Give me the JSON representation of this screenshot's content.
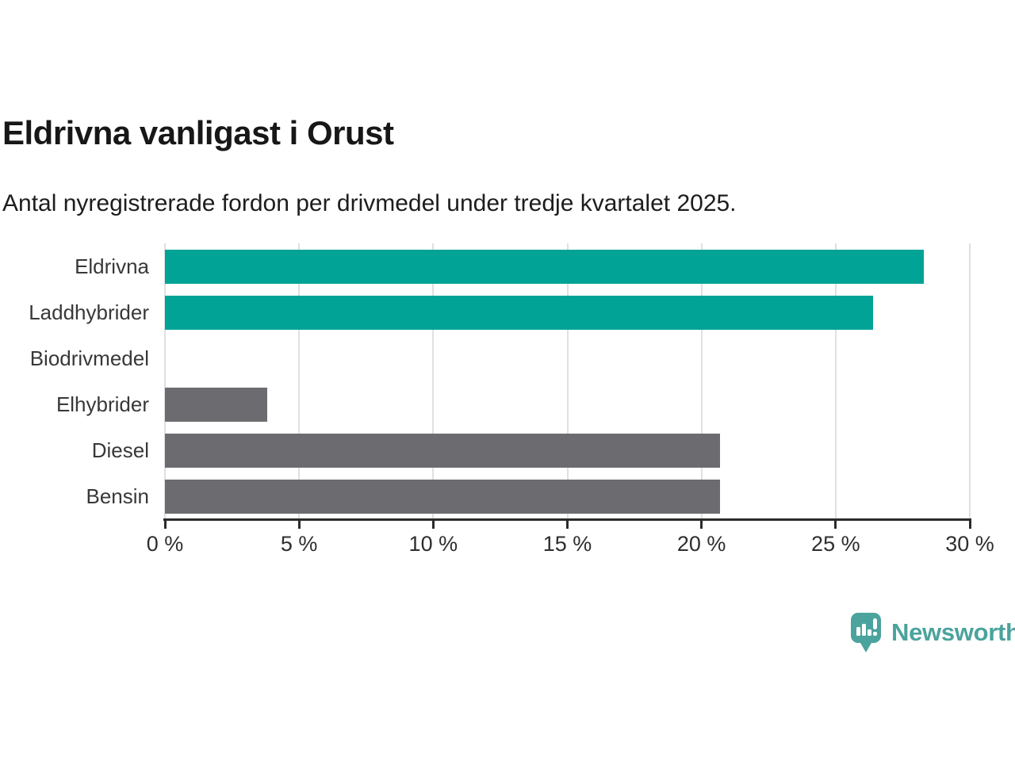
{
  "header": {
    "title": "Eldrivna vanligast i Orust",
    "subtitle": "Antal nyregistrerade fordon per drivmedel under tredje kvartalet 2025."
  },
  "chart_data": {
    "type": "bar",
    "orientation": "horizontal",
    "title": "Eldrivna vanligast i Orust",
    "subtitle": "Antal nyregistrerade fordon per drivmedel under tredje kvartalet 2025.",
    "categories": [
      "Eldrivna",
      "Laddhybrider",
      "Biodrivmedel",
      "Elhybrider",
      "Diesel",
      "Bensin"
    ],
    "values": [
      28.3,
      26.4,
      0,
      3.8,
      20.7,
      20.7
    ],
    "unit": "%",
    "bar_colors": [
      "#00A396",
      "#00A396",
      "#6C6C70",
      "#6C6C70",
      "#6C6C70",
      "#6C6C70"
    ],
    "xlim": [
      0,
      30
    ],
    "x_ticks": [
      0,
      5,
      10,
      15,
      20,
      25,
      30
    ],
    "x_tick_labels": [
      "0 %",
      "5 %",
      "10 %",
      "15 %",
      "20 %",
      "25 %",
      "30 %"
    ],
    "grid": true,
    "legend": false,
    "xlabel": "",
    "ylabel": ""
  },
  "colors": {
    "teal": "#00A396",
    "gray": "#6C6C70",
    "gridline": "#e0e0e0",
    "axis": "#2b2b2b",
    "logo_teal": "#4BA39D"
  },
  "footer": {
    "brand": "Newsworthy",
    "logo_icon": "newsworthy-speech-bubble-bar-chart-icon"
  }
}
